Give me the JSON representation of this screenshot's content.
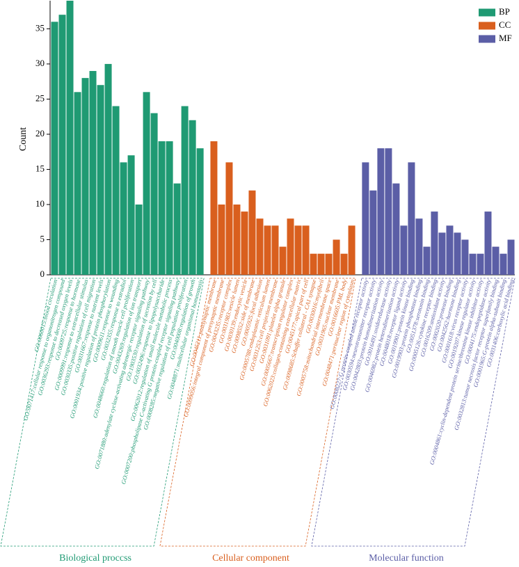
{
  "chart_data": {
    "type": "bar",
    "y_label": "Count",
    "ylim": [
      0,
      39
    ],
    "yticks": [
      0,
      5,
      10,
      15,
      20,
      25,
      30,
      35
    ],
    "legend": "top-right",
    "series": [
      {
        "name": "BP",
        "label": "Biological proccss",
        "color": "#1f9a73",
        "categories": [
          "GO:0060015:blood circulation",
          "GO:0071417:cellular response to organonitrogen compound",
          "GO:0036293:response to decreased oxygen levels",
          "GO:0009725:response to hormone",
          "GO:0009991:response to extracellular stimulus",
          "GO:0030335:positive regulation of cell migration",
          "GO:0031667:response to nutrient levels",
          "GO:0001934:positive regulation of protein phosphorylation",
          "GO:0009611:response to wounding",
          "GO:0032355:response to estradiol",
          "GO:0048660:regulation of smooth muscle cell proliferation",
          "GO:0043269:regulation of ion transport",
          "GO:0071880:adenylate cyclase-activating adrenergic receptor signaling pathway",
          "GO:1903530:regulation of secretion by cell",
          "GO:0032496:response to lipopolysaccharide",
          "GO:0062012:regulation of small molecule metabolic process",
          "GO:0007200:phospholipase C-activating G protein-coupled receptor signaling pathway",
          "GO:0008285:negative regulation of cell population proliferation",
          "GO:0040008:regulation of growth",
          "GO:0048871:multicellular organismal homeostasis"
        ],
        "values": [
          36,
          37,
          39,
          26,
          28,
          29,
          27,
          30,
          24,
          16,
          17,
          10,
          26,
          23,
          19,
          19,
          13,
          24,
          22,
          18
        ]
      },
      {
        "name": "CC",
        "label": "Cellular component",
        "color": "#d95f1e",
        "categories": [
          "GO:0045211:postsynaptic membrane",
          "GO:0099056:integral component of presynaptic membrane",
          "GO:0043235:receptor complex",
          "GO:0031983:vesicle lumen",
          "GO:0030139:endocytic vesicle",
          "GO:0098552:side of membrane",
          "GO:0005925:focal adhesion",
          "GO:0005788:endoplasmic reticulum lumen",
          "GO:0031253:cell projection membrane",
          "GO:0031091:platelet alpha granule",
          "GO:0005667:transcription regulator complex",
          "GO:0062023:collagen-containing extracellular matrix",
          "GO:0045177:apical part of cell",
          "GO:0098685:Schaffer collateral - CA1 synapse",
          "GO:0030016:myofibril",
          "GO:0005758:mitochondrial intermembrane space",
          "GO:0031965:nuclear membrane",
          "GO:0016605:PML body",
          "GO:0048471:perinuclear region of cytoplasm"
        ],
        "values": [
          19,
          10,
          16,
          10,
          9,
          12,
          8,
          7,
          7,
          4,
          8,
          7,
          7,
          3,
          3,
          3,
          5,
          3,
          7
        ]
      },
      {
        "name": "MF",
        "label": "Molecular function",
        "color": "#5b5ea6",
        "categories": [
          "GO:0008227:G protein-coupled amine receptor activity",
          "GO:0030594:neurotransmitter receptor activity",
          "GO:0042803:protein homodimerization activity",
          "GO:0016491:oxidoreductase activity",
          "GO:0046982:protein heterodimerization activity",
          "GO:0048018:receptor ligand activity",
          "GO:0019901:protein kinase binding",
          "GO:0019903:protein phosphatase binding",
          "GO:0051378:serotonin binding",
          "GO:0005126:cytokine receptor binding",
          "GO:0016209:antioxidant activity",
          "GO:0002020:protease binding",
          "GO:0042562:hormone binding",
          "GO:0001618:virus receptor activity",
          "GO:0019207:kinase regulator activity",
          "GO:0004861:cyclin-dependent protein serine/threonine kinase inhibitor activity",
          "GO:0004175:endopeptidase activity",
          "GO:0032813:tumor necrosis factor receptor superfamily binding",
          "GO:0001965:G-protein alpha-subunit binding",
          "GO:0031406:carboxylic acid binding"
        ],
        "values": [
          16,
          12,
          18,
          18,
          13,
          7,
          16,
          8,
          4,
          9,
          6,
          7,
          6,
          5,
          3,
          3,
          9,
          4,
          3,
          5
        ]
      }
    ]
  }
}
